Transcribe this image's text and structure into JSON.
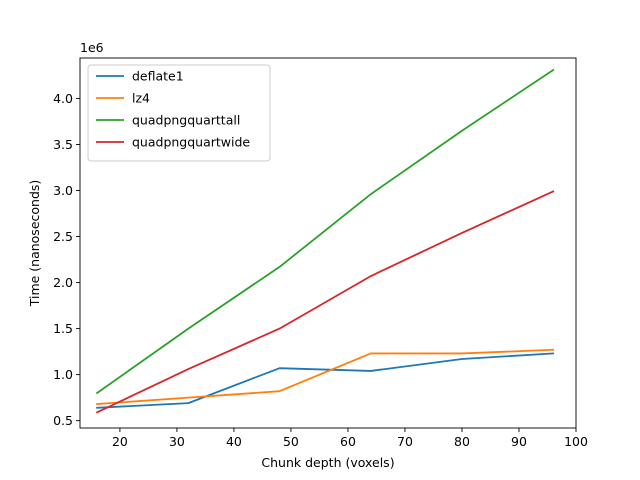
{
  "chart_data": {
    "type": "line",
    "title": "",
    "xlabel": "Chunk depth (voxels)",
    "ylabel": "Time (nanoseconds)",
    "y_multiplier_label": "1e6",
    "xlim": [
      13,
      100
    ],
    "ylim": [
      0.42,
      4.44
    ],
    "x_ticks": [
      20,
      30,
      40,
      50,
      60,
      70,
      80,
      90,
      100
    ],
    "x_tick_labels": [
      "20",
      "30",
      "40",
      "50",
      "60",
      "70",
      "80",
      "90",
      "100"
    ],
    "y_ticks": [
      0.5,
      1.0,
      1.5,
      2.0,
      2.5,
      3.0,
      3.5,
      4.0
    ],
    "y_tick_labels": [
      "0.5",
      "1.0",
      "1.5",
      "2.0",
      "2.5",
      "3.0",
      "3.5",
      "4.0"
    ],
    "grid": false,
    "legend_position": "top-left",
    "x": [
      16,
      32,
      48,
      64,
      80,
      96
    ],
    "series": [
      {
        "name": "deflate1",
        "color": "#1f77b4",
        "values": [
          0.64,
          0.69,
          1.07,
          1.04,
          1.17,
          1.23
        ]
      },
      {
        "name": "lz4",
        "color": "#ff7f0e",
        "values": [
          0.68,
          0.75,
          0.82,
          1.23,
          1.23,
          1.27
        ]
      },
      {
        "name": "quadpngquarttall",
        "color": "#2ca02c",
        "values": [
          0.8,
          1.5,
          2.17,
          2.96,
          3.65,
          4.31
        ]
      },
      {
        "name": "quadpngquartwide",
        "color": "#d62728",
        "values": [
          0.59,
          1.06,
          1.5,
          2.07,
          2.54,
          2.99
        ]
      }
    ]
  }
}
